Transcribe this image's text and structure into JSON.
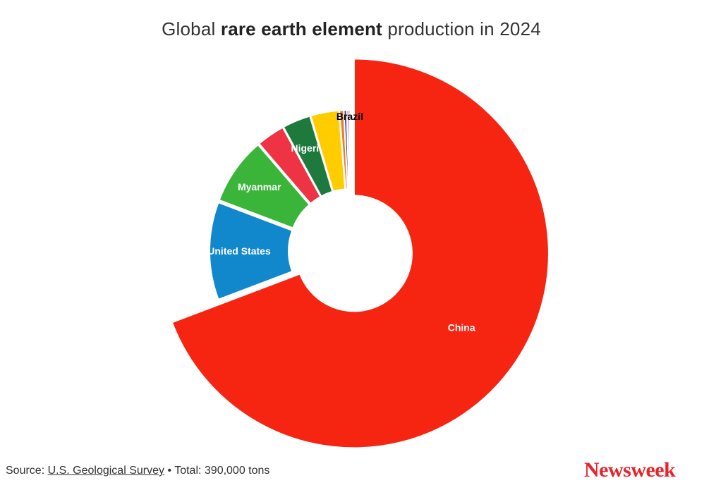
{
  "title": {
    "prefix": "Global ",
    "bold": "rare earth element",
    "suffix": " production in 2024"
  },
  "chart_data": {
    "type": "pie",
    "style": "donut",
    "total_label": "390,000 tons",
    "slices": [
      {
        "name": "",
        "value": 270000,
        "color": "#f52512",
        "label": "China",
        "label_color": "#ffffff"
      },
      {
        "name": "",
        "value": 45000,
        "color": "#1188cc",
        "label": "United States",
        "label_color": "#ffffff"
      },
      {
        "name": "",
        "value": 31000,
        "color": "#3ab53a",
        "label": "Myanmar",
        "label_color": "#ffffff"
      },
      {
        "name": "",
        "value": 13000,
        "color": "#ee3344",
        "label": "",
        "label_color": "#ffffff"
      },
      {
        "name": "",
        "value": 13000,
        "color": "#1e7a3c",
        "label": "Nigeria",
        "label_color": "#ffffff"
      },
      {
        "name": "",
        "value": 13000,
        "color": "#ffcc00",
        "label": "",
        "label_color": "#ffffff"
      },
      {
        "name": "",
        "value": 2000,
        "color": "#f77a22",
        "label": "",
        "label_color": "#ffffff"
      },
      {
        "name": "",
        "value": 1300,
        "color": "#1a44aa",
        "label": "",
        "label_color": "#ffffff"
      },
      {
        "name": "",
        "value": 1000,
        "color": "#f2495c",
        "label": "",
        "label_color": "#ffffff"
      },
      {
        "name": "",
        "value": 700,
        "color": "#222222",
        "label": "Brazil",
        "label_color": "#000000"
      }
    ]
  },
  "footer": {
    "source_prefix": "Source: ",
    "source_link": "U.S. Geological Survey",
    "total_text": " • Total: 390,000 tons"
  },
  "logo": "Newsweek"
}
